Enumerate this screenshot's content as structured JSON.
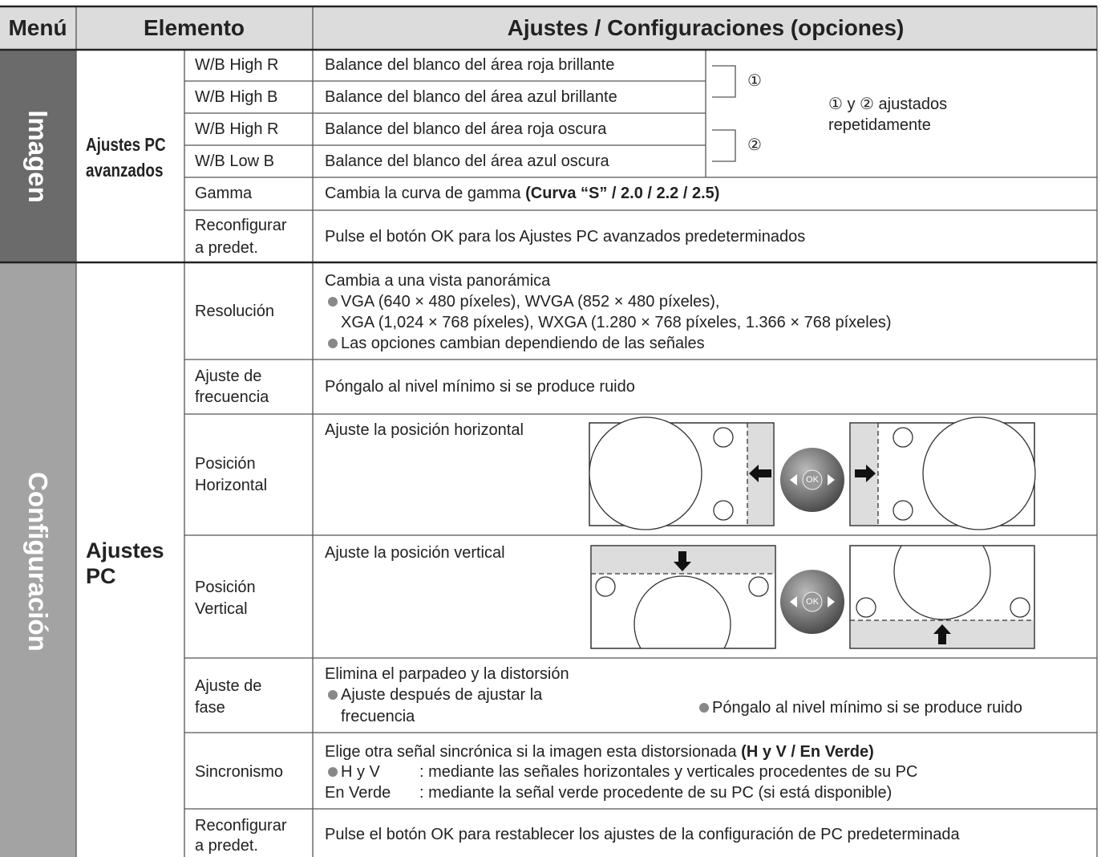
{
  "header": {
    "menu": "Menú",
    "item": "Elemento",
    "settings": "Ajustes / Configuraciones (opciones)"
  },
  "sections": [
    {
      "menu": "Imagen",
      "group": [
        "Ajustes PC",
        "avanzados"
      ],
      "rows": [
        {
          "item": [
            "W/B High R"
          ],
          "text": [
            "Balance del blanco del área roja brillante"
          ]
        },
        {
          "item": [
            "W/B High B"
          ],
          "text": [
            "Balance del blanco del área azul brillante"
          ]
        },
        {
          "item": [
            "W/B High R"
          ],
          "text": [
            "Balance del blanco del área roja oscura"
          ]
        },
        {
          "item": [
            "W/B Low B"
          ],
          "text": [
            "Balance del blanco del área azul oscura"
          ]
        },
        {
          "item": [
            "Gamma"
          ],
          "text": [
            "Cambia la curva de gamma ",
            "(Curva “S” / 2.0 / 2.2 / 2.5)"
          ]
        },
        {
          "item": [
            "Reconfigurar",
            "a predet."
          ],
          "text": [
            "Pulse el botón OK para los Ajustes PC avanzados predeterminados"
          ]
        }
      ],
      "markers": [
        "①",
        "②"
      ],
      "note": [
        "① y ② ajustados",
        "repetidamente"
      ]
    },
    {
      "menu": "Configuración",
      "group": [
        "Ajustes",
        "PC"
      ],
      "rows": [
        {
          "item": [
            "Resolución"
          ],
          "text": [
            "Cambia a una vista panorámica",
            "VGA (640 × 480 píxeles), WVGA (852 × 480 píxeles),",
            "XGA (1,024 × 768 píxeles), WXGA (1.280 × 768 píxeles, 1.366 × 768 píxeles)",
            "Las opciones cambian dependiendo de las señales"
          ]
        },
        {
          "item": [
            "Ajuste de",
            "frecuencia"
          ],
          "text": [
            "Póngalo al nivel mínimo si se produce ruido"
          ]
        },
        {
          "item": [
            "Posición",
            "Horizontal"
          ],
          "text": [
            "Ajuste la posición horizontal"
          ]
        },
        {
          "item": [
            "Posición",
            "Vertical"
          ],
          "text": [
            "Ajuste la posición vertical"
          ]
        },
        {
          "item": [
            "Ajuste de",
            "fase"
          ],
          "text": [
            "Elimina el parpadeo y la distorsión",
            "Ajuste después de ajustar la",
            "frecuencia",
            "Póngalo al nivel mínimo si se produce ruido"
          ]
        },
        {
          "item": [
            "Sincronismo"
          ],
          "text": [
            "Elige otra señal sincrónica si la imagen esta distorsionada ",
            "(H y V / En Verde)",
            "H y V",
            ": mediante las señales horizontales y verticales procedentes de su PC",
            "En Verde",
            ": mediante la señal verde procedente de su PC (si está disponible)"
          ]
        },
        {
          "item": [
            "Reconfigurar",
            "a predet."
          ],
          "text": [
            "Pulse el botón OK para restablecer los ajustes de la configuración de PC predeterminada"
          ]
        }
      ],
      "button": "OK"
    }
  ]
}
